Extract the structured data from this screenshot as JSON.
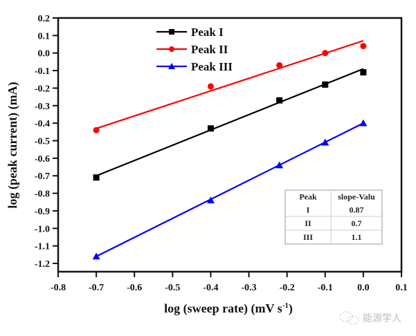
{
  "chart_data": {
    "type": "scatter",
    "title": "",
    "xlabel": "log (sweep rate) (mV s",
    "xlabel_sup": "-1",
    "xlabel_close": ")",
    "ylabel": "log (peak current) (mA)",
    "xlim": [
      -0.8,
      0.1
    ],
    "ylim": [
      -1.25,
      0.2
    ],
    "xticks": [
      -0.8,
      -0.7,
      -0.6,
      -0.5,
      -0.4,
      -0.3,
      -0.2,
      -0.1,
      0.0,
      0.1
    ],
    "xtick_labels": [
      "-0.8",
      "-0.7",
      "-0.6",
      "-0.5",
      "-0.4",
      "-0.3",
      "-0.2",
      "-0.1",
      "0.0",
      "0.1"
    ],
    "yticks": [
      0.2,
      0.1,
      0.0,
      -0.1,
      -0.2,
      -0.3,
      -0.4,
      -0.5,
      -0.6,
      -0.7,
      -0.8,
      -0.9,
      -1.0,
      -1.1,
      -1.2
    ],
    "ytick_labels": [
      "0.2",
      "0.1",
      "0.0",
      "-0.1",
      "-0.2",
      "-0.3",
      "-0.4",
      "-0.5",
      "-0.6",
      "-0.7",
      "-0.8",
      "-0.9",
      "-1.0",
      "-1.1",
      "-1.2"
    ],
    "grid": false,
    "legend_position": "top-center",
    "series": [
      {
        "name": "Peak I",
        "color": "#000000",
        "marker": "square",
        "x": [
          -0.7,
          -0.4,
          -0.22,
          -0.1,
          0.0
        ],
        "y": [
          -0.71,
          -0.43,
          -0.27,
          -0.18,
          -0.11
        ],
        "fit": {
          "x": [
            -0.7,
            0.0
          ],
          "y": [
            -0.7,
            -0.09
          ]
        }
      },
      {
        "name": "Peak II",
        "color": "#ff0000",
        "marker": "circle",
        "x": [
          -0.7,
          -0.4,
          -0.22,
          -0.1,
          0.0
        ],
        "y": [
          -0.44,
          -0.19,
          -0.07,
          0.0,
          0.04
        ],
        "fit": {
          "x": [
            -0.7,
            0.0
          ],
          "y": [
            -0.43,
            0.07
          ]
        }
      },
      {
        "name": "Peak III",
        "color": "#0000ff",
        "marker": "triangle",
        "x": [
          -0.7,
          -0.4,
          -0.22,
          -0.1,
          0.0
        ],
        "y": [
          -1.16,
          -0.84,
          -0.64,
          -0.51,
          -0.4
        ],
        "fit": {
          "x": [
            -0.7,
            0.0
          ],
          "y": [
            -1.16,
            -0.4
          ]
        }
      }
    ],
    "inset_table": {
      "headers": [
        "Peak",
        "slope-Valu"
      ],
      "rows": [
        [
          "I",
          "0.87"
        ],
        [
          "II",
          "0.7"
        ],
        [
          "III",
          "1.1"
        ]
      ]
    }
  },
  "watermark": "能源学人"
}
